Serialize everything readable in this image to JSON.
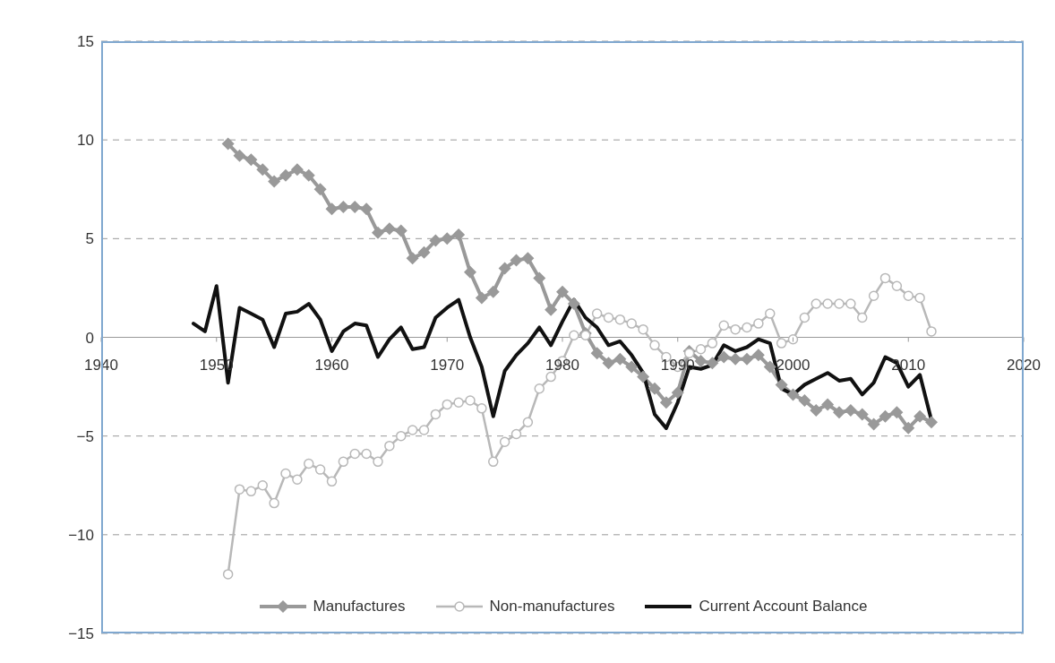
{
  "chart_data": {
    "type": "line",
    "x": [
      1948,
      1949,
      1950,
      1951,
      1952,
      1953,
      1954,
      1955,
      1956,
      1957,
      1958,
      1959,
      1960,
      1961,
      1962,
      1963,
      1964,
      1965,
      1966,
      1967,
      1968,
      1969,
      1970,
      1971,
      1972,
      1973,
      1974,
      1975,
      1976,
      1977,
      1978,
      1979,
      1980,
      1981,
      1982,
      1983,
      1984,
      1985,
      1986,
      1987,
      1988,
      1989,
      1990,
      1991,
      1992,
      1993,
      1994,
      1995,
      1996,
      1997,
      1998,
      1999,
      2000,
      2001,
      2002,
      2003,
      2004,
      2005,
      2006,
      2007,
      2008,
      2009,
      2010,
      2011,
      2012
    ],
    "series": [
      {
        "name": "Manufactures",
        "color": "#999999",
        "marker": "diamond",
        "values": [
          null,
          null,
          null,
          9.8,
          9.2,
          9.0,
          8.5,
          7.9,
          8.2,
          8.5,
          8.2,
          7.5,
          6.5,
          6.6,
          6.6,
          6.5,
          5.3,
          5.5,
          5.4,
          4.0,
          4.3,
          4.9,
          5.0,
          5.2,
          3.3,
          2.0,
          2.3,
          3.5,
          3.9,
          4.0,
          3.0,
          1.4,
          2.3,
          1.7,
          0.2,
          -0.8,
          -1.3,
          -1.1,
          -1.5,
          -2.0,
          -2.6,
          -3.3,
          -2.8,
          -0.7,
          -1.2,
          -1.3,
          -1.0,
          -1.1,
          -1.1,
          -0.9,
          -1.5,
          -2.4,
          -2.9,
          -3.2,
          -3.7,
          -3.4,
          -3.8,
          -3.7,
          -3.9,
          -4.4,
          -4.0,
          -3.8,
          -4.6,
          -4.0,
          -4.3
        ]
      },
      {
        "name": "Non-manufactures",
        "color": "#b8b8b8",
        "marker": "circle",
        "values": [
          null,
          null,
          null,
          -12.0,
          -7.7,
          -7.8,
          -7.5,
          -8.4,
          -6.9,
          -7.2,
          -6.4,
          -6.7,
          -7.3,
          -6.3,
          -5.9,
          -5.9,
          -6.3,
          -5.5,
          -5.0,
          -4.7,
          -4.7,
          -3.9,
          -3.4,
          -3.3,
          -3.2,
          -3.6,
          -6.3,
          -5.3,
          -4.9,
          -4.3,
          -2.6,
          -2.0,
          -1.2,
          0.1,
          0.1,
          1.2,
          1.0,
          0.9,
          0.7,
          0.4,
          -0.4,
          -1.0,
          -1.5,
          -0.8,
          -0.6,
          -0.3,
          0.6,
          0.4,
          0.5,
          0.7,
          1.2,
          -0.3,
          -0.1,
          1.0,
          1.7,
          1.7,
          1.7,
          1.7,
          1.0,
          2.1,
          3.0,
          2.6,
          2.1,
          2.0,
          0.3
        ]
      },
      {
        "name": "Current Account Balance",
        "color": "#111111",
        "marker": "none",
        "values": [
          0.7,
          0.3,
          2.6,
          -2.3,
          1.5,
          1.2,
          0.9,
          -0.5,
          1.2,
          1.3,
          1.7,
          0.9,
          -0.7,
          0.3,
          0.7,
          0.6,
          -1.0,
          -0.1,
          0.5,
          -0.6,
          -0.5,
          1.0,
          1.5,
          1.9,
          0.0,
          -1.5,
          -4.0,
          -1.7,
          -0.9,
          -0.3,
          0.5,
          -0.4,
          0.8,
          1.9,
          1.0,
          0.5,
          -0.4,
          -0.2,
          -0.9,
          -1.8,
          -3.9,
          -4.6,
          -3.3,
          -1.5,
          -1.6,
          -1.4,
          -0.4,
          -0.7,
          -0.5,
          -0.1,
          -0.3,
          -2.6,
          -2.9,
          -2.4,
          -2.1,
          -1.8,
          -2.2,
          -2.1,
          -2.9,
          -2.3,
          -1.0,
          -1.3,
          -2.5,
          -1.9,
          -4.2
        ]
      }
    ],
    "xlim": [
      1940,
      2020
    ],
    "xticks": [
      1940,
      1950,
      1960,
      1970,
      1980,
      1990,
      2000,
      2010,
      2020
    ],
    "ylim": [
      -15,
      15
    ],
    "yticks": [
      -15,
      -10,
      -5,
      0,
      5,
      10,
      15
    ],
    "grid": "y",
    "legend": "bottom",
    "line_style": "solid"
  }
}
